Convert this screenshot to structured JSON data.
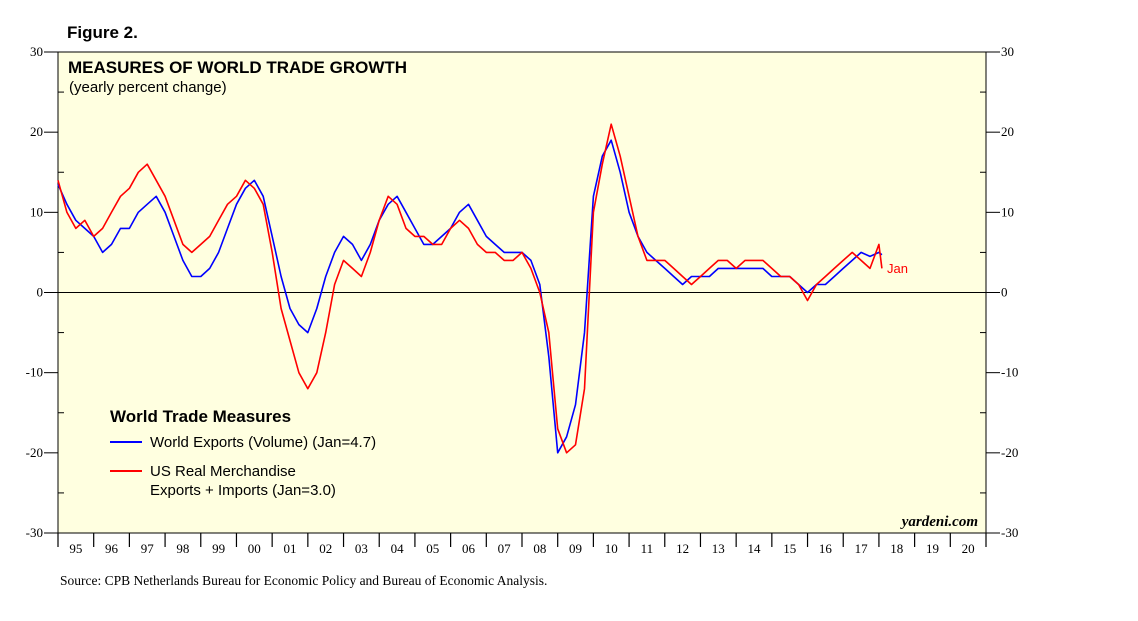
{
  "figure_label": "Figure 2.",
  "source": "Source: CPB Netherlands Bureau for Economic Policy and Bureau of Economic Analysis.",
  "watermark": "yardeni.com",
  "colors": {
    "plot_bg": "#ffffe0",
    "world": "#0000ff",
    "us": "#ff0000",
    "axis": "#000000"
  },
  "chart_data": {
    "type": "line",
    "title": "MEASURES OF WORLD TRADE GROWTH",
    "subtitle": "(yearly percent change)",
    "ylim": [
      -30,
      30
    ],
    "yticks": [
      -30,
      -20,
      -10,
      0,
      10,
      20,
      30
    ],
    "ytick_labels_left": [
      "-30",
      "-20",
      "-10",
      "0",
      "10",
      "20",
      "30"
    ],
    "ytick_labels_right": [
      "-30",
      "-20",
      "-10",
      "0",
      "10",
      "20",
      "30"
    ],
    "xlim": [
      1995.0,
      2021.0
    ],
    "year_labels": [
      "95",
      "96",
      "97",
      "98",
      "99",
      "00",
      "01",
      "02",
      "03",
      "04",
      "05",
      "06",
      "07",
      "08",
      "09",
      "10",
      "11",
      "12",
      "13",
      "14",
      "15",
      "16",
      "17",
      "18",
      "19",
      "20"
    ],
    "legend_title": "World Trade Measures",
    "end_label": "Jan",
    "series": [
      {
        "name": "World Exports (Volume) (Jan=4.7)",
        "legend_lines": [
          "World Exports (Volume) (Jan=4.7)"
        ],
        "color": "#0000ff",
        "points": [
          [
            1995.0,
            13.5
          ],
          [
            1995.25,
            11
          ],
          [
            1995.5,
            9
          ],
          [
            1995.75,
            8
          ],
          [
            1996.0,
            7
          ],
          [
            1996.25,
            5
          ],
          [
            1996.5,
            6
          ],
          [
            1996.75,
            8
          ],
          [
            1997.0,
            8
          ],
          [
            1997.25,
            10
          ],
          [
            1997.5,
            11
          ],
          [
            1997.75,
            12
          ],
          [
            1998.0,
            10
          ],
          [
            1998.25,
            7
          ],
          [
            1998.5,
            4
          ],
          [
            1998.75,
            2
          ],
          [
            1999.0,
            2
          ],
          [
            1999.25,
            3
          ],
          [
            1999.5,
            5
          ],
          [
            1999.75,
            8
          ],
          [
            2000.0,
            11
          ],
          [
            2000.25,
            13
          ],
          [
            2000.5,
            14
          ],
          [
            2000.75,
            12
          ],
          [
            2001.0,
            7
          ],
          [
            2001.25,
            2
          ],
          [
            2001.5,
            -2
          ],
          [
            2001.75,
            -4
          ],
          [
            2002.0,
            -5
          ],
          [
            2002.25,
            -2
          ],
          [
            2002.5,
            2
          ],
          [
            2002.75,
            5
          ],
          [
            2003.0,
            7
          ],
          [
            2003.25,
            6
          ],
          [
            2003.5,
            4
          ],
          [
            2003.75,
            6
          ],
          [
            2004.0,
            9
          ],
          [
            2004.25,
            11
          ],
          [
            2004.5,
            12
          ],
          [
            2004.75,
            10
          ],
          [
            2005.0,
            8
          ],
          [
            2005.25,
            6
          ],
          [
            2005.5,
            6
          ],
          [
            2005.75,
            7
          ],
          [
            2006.0,
            8
          ],
          [
            2006.25,
            10
          ],
          [
            2006.5,
            11
          ],
          [
            2006.75,
            9
          ],
          [
            2007.0,
            7
          ],
          [
            2007.25,
            6
          ],
          [
            2007.5,
            5
          ],
          [
            2007.75,
            5
          ],
          [
            2008.0,
            5
          ],
          [
            2008.25,
            4
          ],
          [
            2008.5,
            1
          ],
          [
            2008.75,
            -8
          ],
          [
            2009.0,
            -20
          ],
          [
            2009.25,
            -18
          ],
          [
            2009.5,
            -14
          ],
          [
            2009.75,
            -5
          ],
          [
            2010.0,
            12
          ],
          [
            2010.25,
            17
          ],
          [
            2010.5,
            19
          ],
          [
            2010.75,
            15
          ],
          [
            2011.0,
            10
          ],
          [
            2011.25,
            7
          ],
          [
            2011.5,
            5
          ],
          [
            2011.75,
            4
          ],
          [
            2012.0,
            3
          ],
          [
            2012.25,
            2
          ],
          [
            2012.5,
            1
          ],
          [
            2012.75,
            2
          ],
          [
            2013.0,
            2
          ],
          [
            2013.25,
            2
          ],
          [
            2013.5,
            3
          ],
          [
            2013.75,
            3
          ],
          [
            2014.0,
            3
          ],
          [
            2014.25,
            3
          ],
          [
            2014.5,
            3
          ],
          [
            2014.75,
            3
          ],
          [
            2015.0,
            2
          ],
          [
            2015.25,
            2
          ],
          [
            2015.5,
            2
          ],
          [
            2015.75,
            1
          ],
          [
            2016.0,
            0
          ],
          [
            2016.25,
            1
          ],
          [
            2016.5,
            1
          ],
          [
            2016.75,
            2
          ],
          [
            2017.0,
            3
          ],
          [
            2017.25,
            4
          ],
          [
            2017.5,
            5
          ],
          [
            2017.75,
            4.5
          ],
          [
            2018.0,
            5
          ],
          [
            2018.083,
            4.7
          ]
        ]
      },
      {
        "name": "US Real Merchandise Exports + Imports (Jan=3.0)",
        "legend_lines": [
          "US Real Merchandise",
          "Exports + Imports (Jan=3.0)"
        ],
        "color": "#ff0000",
        "points": [
          [
            1995.0,
            14
          ],
          [
            1995.25,
            10
          ],
          [
            1995.5,
            8
          ],
          [
            1995.75,
            9
          ],
          [
            1996.0,
            7
          ],
          [
            1996.25,
            8
          ],
          [
            1996.5,
            10
          ],
          [
            1996.75,
            12
          ],
          [
            1997.0,
            13
          ],
          [
            1997.25,
            15
          ],
          [
            1997.5,
            16
          ],
          [
            1997.75,
            14
          ],
          [
            1998.0,
            12
          ],
          [
            1998.25,
            9
          ],
          [
            1998.5,
            6
          ],
          [
            1998.75,
            5
          ],
          [
            1999.0,
            6
          ],
          [
            1999.25,
            7
          ],
          [
            1999.5,
            9
          ],
          [
            1999.75,
            11
          ],
          [
            2000.0,
            12
          ],
          [
            2000.25,
            14
          ],
          [
            2000.5,
            13
          ],
          [
            2000.75,
            11
          ],
          [
            2001.0,
            5
          ],
          [
            2001.25,
            -2
          ],
          [
            2001.5,
            -6
          ],
          [
            2001.75,
            -10
          ],
          [
            2002.0,
            -12
          ],
          [
            2002.25,
            -10
          ],
          [
            2002.5,
            -5
          ],
          [
            2002.75,
            1
          ],
          [
            2003.0,
            4
          ],
          [
            2003.25,
            3
          ],
          [
            2003.5,
            2
          ],
          [
            2003.75,
            5
          ],
          [
            2004.0,
            9
          ],
          [
            2004.25,
            12
          ],
          [
            2004.5,
            11
          ],
          [
            2004.75,
            8
          ],
          [
            2005.0,
            7
          ],
          [
            2005.25,
            7
          ],
          [
            2005.5,
            6
          ],
          [
            2005.75,
            6
          ],
          [
            2006.0,
            8
          ],
          [
            2006.25,
            9
          ],
          [
            2006.5,
            8
          ],
          [
            2006.75,
            6
          ],
          [
            2007.0,
            5
          ],
          [
            2007.25,
            5
          ],
          [
            2007.5,
            4
          ],
          [
            2007.75,
            4
          ],
          [
            2008.0,
            5
          ],
          [
            2008.25,
            3
          ],
          [
            2008.5,
            0
          ],
          [
            2008.75,
            -5
          ],
          [
            2009.0,
            -17
          ],
          [
            2009.25,
            -20
          ],
          [
            2009.5,
            -19
          ],
          [
            2009.75,
            -12
          ],
          [
            2010.0,
            10
          ],
          [
            2010.25,
            16
          ],
          [
            2010.5,
            21
          ],
          [
            2010.75,
            17
          ],
          [
            2011.0,
            12
          ],
          [
            2011.25,
            7
          ],
          [
            2011.5,
            4
          ],
          [
            2011.75,
            4
          ],
          [
            2012.0,
            4
          ],
          [
            2012.25,
            3
          ],
          [
            2012.5,
            2
          ],
          [
            2012.75,
            1
          ],
          [
            2013.0,
            2
          ],
          [
            2013.25,
            3
          ],
          [
            2013.5,
            4
          ],
          [
            2013.75,
            4
          ],
          [
            2014.0,
            3
          ],
          [
            2014.25,
            4
          ],
          [
            2014.5,
            4
          ],
          [
            2014.75,
            4
          ],
          [
            2015.0,
            3
          ],
          [
            2015.25,
            2
          ],
          [
            2015.5,
            2
          ],
          [
            2015.75,
            1
          ],
          [
            2016.0,
            -1
          ],
          [
            2016.25,
            1
          ],
          [
            2016.5,
            2
          ],
          [
            2016.75,
            3
          ],
          [
            2017.0,
            4
          ],
          [
            2017.25,
            5
          ],
          [
            2017.5,
            4
          ],
          [
            2017.75,
            3
          ],
          [
            2018.0,
            6
          ],
          [
            2018.083,
            3.0
          ]
        ]
      }
    ]
  }
}
